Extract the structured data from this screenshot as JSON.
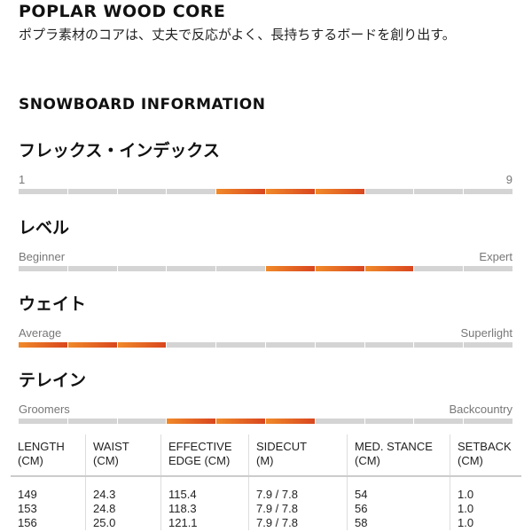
{
  "core": {
    "title": "POPLAR WOOD CORE",
    "desc": "ポプラ素材のコアは、丈夫で反応がよく、長持ちするボードを創り出す。"
  },
  "info": {
    "title": "SNOWBOARD INFORMATION"
  },
  "ratings": [
    {
      "label": "フレックス・インデックス",
      "min": "1",
      "max": "9",
      "segments": 10,
      "filled": [
        5,
        6,
        7
      ]
    },
    {
      "label": "レベル",
      "min": "Beginner",
      "max": "Expert",
      "segments": 10,
      "filled": [
        6,
        7,
        8
      ]
    },
    {
      "label": "ウェイト",
      "min": "Average",
      "max": "Superlight",
      "segments": 10,
      "filled": [
        1,
        2,
        3
      ]
    },
    {
      "label": "テレイン",
      "min": "Groomers",
      "max": "Backcountry",
      "segments": 10,
      "filled": [
        4,
        5,
        6
      ]
    }
  ],
  "accent": [
    "#f08a2a",
    "#d9461f"
  ],
  "table": {
    "headers": [
      [
        "LENGTH",
        "(CM)"
      ],
      [
        "WAIST",
        "(CM)"
      ],
      [
        "EFFECTIVE",
        "EDGE (CM)"
      ],
      [
        "SIDECUT",
        "(M)"
      ],
      [
        "MED. STANCE",
        "(CM)"
      ],
      [
        "SETBACK",
        "(CM)"
      ]
    ],
    "rows": [
      [
        "149",
        "24.3",
        "115.4",
        "7.9 / 7.8",
        "54",
        "1.0"
      ],
      [
        "153",
        "24.8",
        "118.3",
        "7.9 / 7.8",
        "56",
        "1.0"
      ],
      [
        "156",
        "25.0",
        "121.1",
        "7.9 / 7.8",
        "58",
        "1.0"
      ]
    ]
  }
}
